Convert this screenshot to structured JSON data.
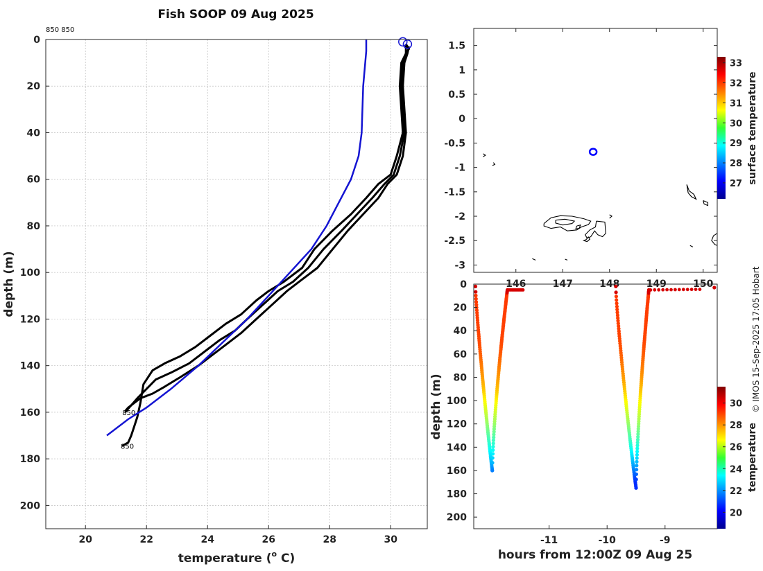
{
  "chart_data": [
    {
      "type": "line",
      "id": "profile",
      "title": "Fish SOOP 09 Aug 2025",
      "corner_label": "850 850",
      "xlabel": "temperature (",
      "xlabel_super": "o",
      "xlabel_suffix": " C)",
      "ylabel": "depth (m)",
      "xlim": [
        18.7,
        31.2
      ],
      "ylim": [
        210,
        0
      ],
      "xticks": [
        20,
        22,
        24,
        26,
        28,
        30
      ],
      "yticks": [
        0,
        20,
        40,
        60,
        80,
        100,
        120,
        140,
        160,
        180,
        200
      ],
      "grid": true,
      "climatology": {
        "name": "climatology",
        "color": "#1414d2",
        "points": [
          [
            29.2,
            0
          ],
          [
            29.2,
            5
          ],
          [
            29.1,
            20
          ],
          [
            29.05,
            40
          ],
          [
            28.95,
            50
          ],
          [
            28.7,
            60
          ],
          [
            28.3,
            70
          ],
          [
            27.9,
            80
          ],
          [
            27.4,
            90
          ],
          [
            26.7,
            100
          ],
          [
            26.0,
            110
          ],
          [
            25.3,
            120
          ],
          [
            24.5,
            130
          ],
          [
            23.7,
            140
          ],
          [
            22.8,
            150
          ],
          [
            22.0,
            158
          ],
          [
            21.4,
            163
          ],
          [
            20.7,
            170
          ]
        ]
      },
      "casts": [
        {
          "name": "cast-1",
          "color": "#000000",
          "label": "850",
          "label_point": [
            21.2,
            174.5
          ],
          "points": [
            [
              30.5,
              2
            ],
            [
              30.6,
              4
            ],
            [
              30.5,
              6
            ],
            [
              30.35,
              10
            ],
            [
              30.3,
              20
            ],
            [
              30.35,
              30
            ],
            [
              30.4,
              40
            ],
            [
              30.2,
              50
            ],
            [
              30.0,
              58
            ],
            [
              29.6,
              62
            ],
            [
              29.2,
              68
            ],
            [
              28.7,
              75
            ],
            [
              28.1,
              82
            ],
            [
              27.5,
              90
            ],
            [
              27.1,
              98
            ],
            [
              26.5,
              104
            ],
            [
              26.0,
              108
            ],
            [
              25.6,
              112
            ],
            [
              25.1,
              118
            ],
            [
              24.6,
              122
            ],
            [
              24.1,
              127
            ],
            [
              23.6,
              132
            ],
            [
              23.1,
              136
            ],
            [
              22.6,
              139
            ],
            [
              22.2,
              142
            ],
            [
              21.9,
              148
            ],
            [
              21.8,
              156
            ],
            [
              21.7,
              162
            ],
            [
              21.6,
              166
            ],
            [
              21.5,
              170
            ],
            [
              21.4,
              173
            ],
            [
              21.2,
              174.5
            ]
          ]
        },
        {
          "name": "cast-2",
          "color": "#000000",
          "label": "",
          "label_point": null,
          "points": [
            [
              30.5,
              2
            ],
            [
              30.5,
              6
            ],
            [
              30.4,
              10
            ],
            [
              30.35,
              20
            ],
            [
              30.4,
              30
            ],
            [
              30.45,
              40
            ],
            [
              30.3,
              50
            ],
            [
              30.1,
              58
            ],
            [
              29.8,
              62
            ],
            [
              29.4,
              68
            ],
            [
              28.9,
              75
            ],
            [
              28.4,
              82
            ],
            [
              27.8,
              90
            ],
            [
              27.3,
              98
            ],
            [
              26.8,
              104
            ],
            [
              26.3,
              108
            ],
            [
              25.8,
              114
            ],
            [
              25.3,
              120
            ],
            [
              24.9,
              125
            ],
            [
              24.4,
              129
            ],
            [
              23.9,
              134
            ],
            [
              23.4,
              139
            ],
            [
              22.8,
              143
            ],
            [
              22.3,
              146
            ],
            [
              22.0,
              150
            ],
            [
              21.7,
              154
            ],
            [
              21.5,
              157
            ],
            [
              21.3,
              160
            ]
          ]
        },
        {
          "name": "cast-3",
          "color": "#000000",
          "label": "850",
          "label_point": [
            21.25,
            160
          ],
          "points": [
            [
              30.6,
              3
            ],
            [
              30.55,
              6
            ],
            [
              30.45,
              10
            ],
            [
              30.4,
              20
            ],
            [
              30.45,
              30
            ],
            [
              30.5,
              40
            ],
            [
              30.4,
              50
            ],
            [
              30.2,
              58
            ],
            [
              29.9,
              62
            ],
            [
              29.6,
              68
            ],
            [
              29.1,
              75
            ],
            [
              28.6,
              82
            ],
            [
              28.1,
              90
            ],
            [
              27.6,
              98
            ],
            [
              27.0,
              104
            ],
            [
              26.6,
              108
            ],
            [
              26.1,
              114
            ],
            [
              25.6,
              120
            ],
            [
              25.1,
              126
            ],
            [
              24.6,
              131
            ],
            [
              24.1,
              136
            ],
            [
              23.7,
              140
            ],
            [
              23.1,
              145
            ],
            [
              22.6,
              149
            ],
            [
              22.2,
              152
            ],
            [
              21.8,
              154
            ],
            [
              21.6,
              156
            ],
            [
              21.4,
              158
            ],
            [
              21.3,
              159.5
            ]
          ]
        }
      ],
      "markers": [
        [
          30.4,
          1
        ],
        [
          30.55,
          2
        ]
      ]
    },
    {
      "type": "map",
      "id": "map",
      "xlim": [
        145.1,
        150.3
      ],
      "ylim": [
        -3.15,
        1.85
      ],
      "xticks": [
        146,
        147,
        148,
        149,
        150
      ],
      "yticks": [
        1.5,
        1,
        0.5,
        0,
        -0.5,
        -1,
        -1.5,
        -2,
        -2.5,
        -3
      ],
      "ytick_labels": [
        "1.5",
        "1",
        "0.5",
        "0",
        "-0.5",
        "-1",
        "-1.5",
        "-2",
        "-2.5",
        "-3"
      ],
      "position_marker": [
        147.65,
        -0.68
      ],
      "colorbar": {
        "label": "surface temperature",
        "range": [
          26.2,
          33.3
        ],
        "ticks": [
          27,
          28,
          29,
          30,
          31,
          32,
          33
        ]
      },
      "coastlines": [
        [
          [
            146.6,
            -2.15
          ],
          [
            146.75,
            -2.03
          ],
          [
            146.95,
            -1.99
          ],
          [
            147.2,
            -2.0
          ],
          [
            147.45,
            -2.05
          ],
          [
            147.6,
            -2.1
          ],
          [
            147.55,
            -2.17
          ],
          [
            147.4,
            -2.22
          ],
          [
            147.3,
            -2.28
          ],
          [
            147.1,
            -2.3
          ],
          [
            146.95,
            -2.22
          ],
          [
            146.75,
            -2.25
          ],
          [
            146.6,
            -2.2
          ],
          [
            146.6,
            -2.15
          ]
        ],
        [
          [
            146.85,
            -2.08
          ],
          [
            147.05,
            -2.06
          ],
          [
            147.25,
            -2.1
          ],
          [
            147.2,
            -2.15
          ],
          [
            147.0,
            -2.18
          ],
          [
            146.85,
            -2.14
          ],
          [
            146.85,
            -2.08
          ]
        ],
        [
          [
            147.3,
            -2.2
          ],
          [
            147.38,
            -2.18
          ],
          [
            147.35,
            -2.25
          ],
          [
            147.28,
            -2.26
          ],
          [
            147.3,
            -2.2
          ]
        ],
        [
          [
            147.72,
            -2.1
          ],
          [
            147.9,
            -2.12
          ],
          [
            147.92,
            -2.35
          ],
          [
            147.85,
            -2.42
          ],
          [
            147.75,
            -2.38
          ],
          [
            147.68,
            -2.3
          ],
          [
            147.6,
            -2.42
          ],
          [
            147.52,
            -2.45
          ],
          [
            147.48,
            -2.38
          ],
          [
            147.58,
            -2.28
          ],
          [
            147.7,
            -2.22
          ],
          [
            147.72,
            -2.1
          ]
        ],
        [
          [
            147.55,
            -2.42
          ],
          [
            147.5,
            -2.48
          ],
          [
            147.45,
            -2.5
          ],
          [
            147.52,
            -2.52
          ],
          [
            147.58,
            -2.47
          ],
          [
            147.55,
            -2.42
          ]
        ],
        [
          [
            149.65,
            -1.35
          ],
          [
            149.7,
            -1.48
          ],
          [
            149.8,
            -1.55
          ],
          [
            149.85,
            -1.65
          ],
          [
            149.75,
            -1.6
          ],
          [
            149.68,
            -1.52
          ],
          [
            149.65,
            -1.35
          ]
        ],
        [
          [
            150.0,
            -1.68
          ],
          [
            150.1,
            -1.72
          ],
          [
            150.1,
            -1.78
          ],
          [
            150.02,
            -1.75
          ],
          [
            150.0,
            -1.68
          ]
        ],
        [
          [
            150.3,
            -2.35
          ],
          [
            150.22,
            -2.4
          ],
          [
            150.18,
            -2.5
          ],
          [
            150.25,
            -2.58
          ],
          [
            150.3,
            -2.6
          ]
        ],
        [
          [
            145.3,
            -0.72
          ],
          [
            145.35,
            -0.75
          ],
          [
            145.3,
            -0.78
          ]
        ],
        [
          [
            145.52,
            -0.9
          ],
          [
            145.55,
            -0.94
          ],
          [
            145.5,
            -0.96
          ]
        ],
        [
          [
            148.0,
            -1.97
          ],
          [
            148.05,
            -2.0
          ],
          [
            148.0,
            -2.04
          ]
        ],
        [
          [
            146.35,
            -2.87
          ],
          [
            146.42,
            -2.9
          ]
        ],
        [
          [
            147.05,
            -2.88
          ],
          [
            147.1,
            -2.9
          ]
        ],
        [
          [
            149.72,
            -2.6
          ],
          [
            149.78,
            -2.63
          ]
        ]
      ]
    },
    {
      "type": "scatter",
      "id": "timeseries",
      "xlabel": "hours from 12:00Z 09 Aug 25",
      "ylabel": "depth (m)",
      "xlim": [
        -12.3,
        -8.1
      ],
      "ylim": [
        210,
        0
      ],
      "xticks": [
        -11,
        -10,
        -9
      ],
      "yticks": [
        0,
        20,
        40,
        60,
        80,
        100,
        120,
        140,
        160,
        180,
        200
      ],
      "colorbar": {
        "label": "temperature",
        "range": [
          18.5,
          31.5
        ],
        "ticks": [
          20,
          22,
          24,
          26,
          28,
          30
        ]
      },
      "casts": [
        {
          "t_start": -12.27,
          "t_bottom": -11.98,
          "t_end": -11.72,
          "bottom_depth": 160,
          "surface_depth": 5,
          "tail": [
            -11.7,
            -11.45
          ],
          "tail_depth": [
            5,
            5
          ]
        },
        {
          "t_start": -9.85,
          "t_bottom": -9.5,
          "t_end": -9.28,
          "bottom_depth": 175,
          "surface_depth": 5,
          "tail": [
            -9.25,
            -8.4
          ],
          "tail_depth": [
            5,
            4.5
          ]
        }
      ],
      "tail_end": [
        -8.15,
        3
      ]
    }
  ],
  "credit": "© IMOS 15-Sep-2025 17:05 Hobart"
}
